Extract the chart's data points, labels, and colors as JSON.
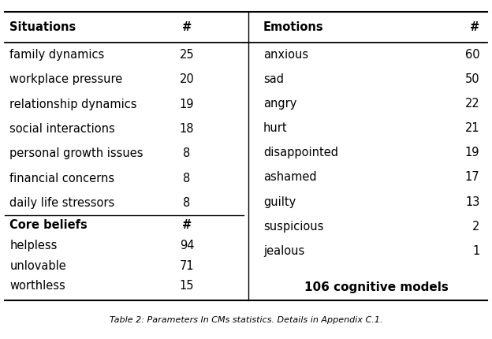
{
  "situations_header": [
    "Situations",
    "#"
  ],
  "situations_rows": [
    [
      "family dynamics",
      "25"
    ],
    [
      "workplace pressure",
      "20"
    ],
    [
      "relationship dynamics",
      "19"
    ],
    [
      "social interactions",
      "18"
    ],
    [
      "personal growth issues",
      "8"
    ],
    [
      "financial concerns",
      "8"
    ],
    [
      "daily life stressors",
      "8"
    ]
  ],
  "core_beliefs_header": [
    "Core beliefs",
    "#"
  ],
  "core_beliefs_rows": [
    [
      "helpless",
      "94"
    ],
    [
      "unlovable",
      "71"
    ],
    [
      "worthless",
      "15"
    ]
  ],
  "emotions_header": [
    "Emotions",
    "#"
  ],
  "emotions_rows": [
    [
      "anxious",
      "60"
    ],
    [
      "sad",
      "50"
    ],
    [
      "angry",
      "22"
    ],
    [
      "hurt",
      "21"
    ],
    [
      "disappointed",
      "19"
    ],
    [
      "ashamed",
      "17"
    ],
    [
      "guilty",
      "13"
    ],
    [
      "suspicious",
      "2"
    ],
    [
      "jealous",
      "1"
    ]
  ],
  "summary_text": "106 cognitive models",
  "caption": "Table 2: Parameters In CMs statistics. Details in Appendix C.1.",
  "bg_color": "#ffffff",
  "text_color": "#000000",
  "font_size": 10.5,
  "bold_size": 10.5
}
